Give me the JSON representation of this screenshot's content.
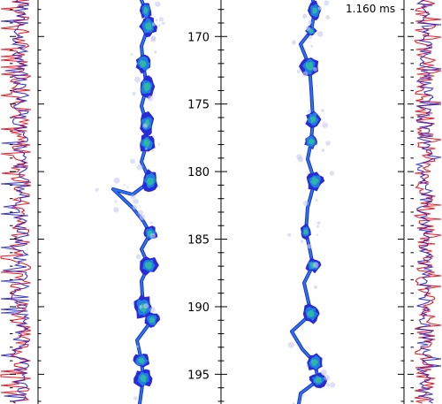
{
  "time_label": "1.160 ms",
  "colors": {
    "red_trace": "#e8000b",
    "blue_trace": "#1f1fc8",
    "blob_outer": "#2a2ad8",
    "blob_mid": "#1e7fe0",
    "blob_core": "#2fb5a5",
    "haze": "#c8c8f0"
  },
  "chart_data": {
    "type": "image",
    "y_axis": {
      "ticks": [
        170,
        175,
        180,
        185,
        190,
        195
      ],
      "tick_labels": [
        "170",
        "175",
        "180",
        "185",
        "190",
        "195"
      ],
      "range": [
        167.3,
        197.2
      ],
      "minor_tick_step": 1
    },
    "panels": [
      "left-image",
      "right-image"
    ],
    "side_profiles": [
      "left-profile",
      "right-profile"
    ],
    "profile_series_colors": [
      "red",
      "blue"
    ]
  }
}
